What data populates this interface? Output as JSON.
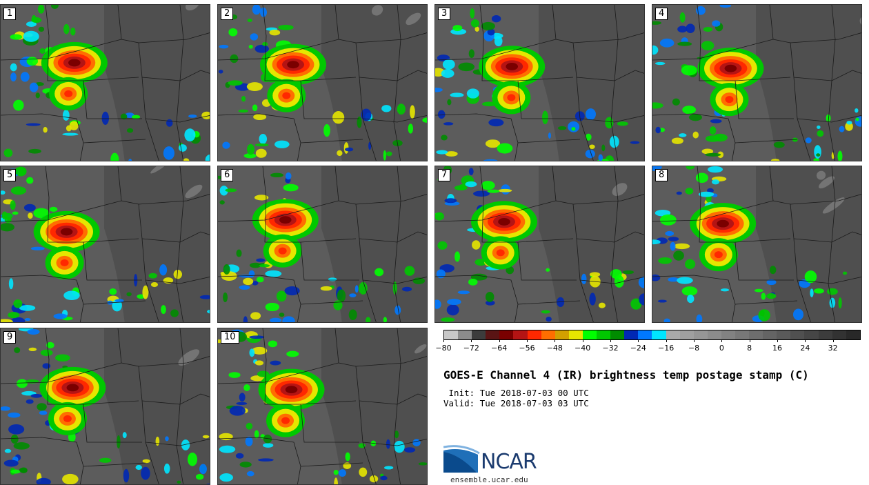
{
  "panels": [
    {
      "label": "1"
    },
    {
      "label": "2"
    },
    {
      "label": "3"
    },
    {
      "label": "4"
    },
    {
      "label": "5"
    },
    {
      "label": "6"
    },
    {
      "label": "7"
    },
    {
      "label": "8"
    },
    {
      "label": "9"
    },
    {
      "label": "10"
    }
  ],
  "colorbar": {
    "colors": [
      "#c8c8c8",
      "#8c8c8c",
      "#3c3c3c",
      "#5a1414",
      "#7a0000",
      "#b41414",
      "#ff2800",
      "#ff6e00",
      "#d2a000",
      "#e6e600",
      "#00ff00",
      "#00c800",
      "#008c00",
      "#0028b4",
      "#0078ff",
      "#00e6ff",
      "#aaaaaa",
      "#a0a0a0",
      "#969696",
      "#8c8c8c",
      "#828282",
      "#787878",
      "#6e6e6e",
      "#646464",
      "#5a5a5a",
      "#505050",
      "#464646",
      "#3c3c3c",
      "#323232",
      "#282828"
    ],
    "ticks": [
      "−80",
      "−72",
      "−64",
      "−56",
      "−48",
      "−40",
      "−32",
      "−24",
      "−16",
      "−8",
      "0",
      "8",
      "16",
      "24",
      "32"
    ]
  },
  "title": "GOES-E Channel 4 (IR) brightness temp postage stamp (C)",
  "init": " Init: Tue 2018-07-03 00 UTC",
  "valid": "Valid: Tue 2018-07-03 03 UTC",
  "logo": {
    "name": "NCAR",
    "url": "ensemble.ucar.edu"
  }
}
